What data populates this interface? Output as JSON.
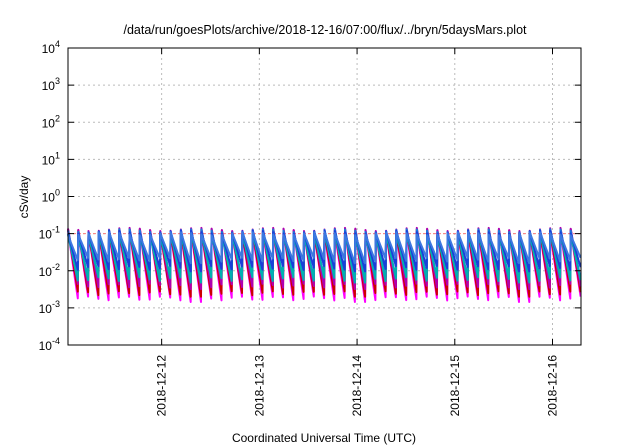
{
  "chart_data": {
    "type": "line",
    "title": "/data/run/goesPlots/archive/2018-12-16/07:00/flux/../bryn/5daysMars.plot",
    "xlabel": "Coordinated Universal Time (UTC)",
    "ylabel": "cSv/day",
    "yscale": "log",
    "ylim": [
      0.0001,
      10000
    ],
    "xlim": [
      "2018-12-11T01:00",
      "2018-12-16T07:00"
    ],
    "x_ticks": [
      "2018-12-12",
      "2018-12-13",
      "2018-12-14",
      "2018-12-15",
      "2018-12-16"
    ],
    "y_ticks": [
      {
        "base": "10",
        "exp": "-4"
      },
      {
        "base": "10",
        "exp": "-3"
      },
      {
        "base": "10",
        "exp": "-2"
      },
      {
        "base": "10",
        "exp": "-1"
      },
      {
        "base": "10",
        "exp": "0"
      },
      {
        "base": "10",
        "exp": "1"
      },
      {
        "base": "10",
        "exp": "2"
      },
      {
        "base": "10",
        "exp": "3"
      },
      {
        "base": "10",
        "exp": "4"
      }
    ],
    "grid": true,
    "threshold_line": 0.1,
    "sawtooth": {
      "teeth_count": 50,
      "peak_range": [
        0.1,
        0.13
      ],
      "min_range_lowest": [
        0.0015,
        0.005
      ],
      "gap_around": [
        "2018-12-12T06:00",
        "2018-12-13T22:00",
        "2018-12-15T14:00"
      ]
    },
    "series": [
      {
        "color": "#ff00ff",
        "peak": 0.11,
        "min": 0.0018
      },
      {
        "color": "#cc0000",
        "peak": 0.12,
        "min": 0.0025
      },
      {
        "color": "#b000b0",
        "peak": 0.13,
        "min": 0.004
      },
      {
        "color": "#1a7ad9",
        "peak": 0.12,
        "min": 0.007
      },
      {
        "color": "#00b0b0",
        "peak": 0.1,
        "min": 0.006
      },
      {
        "color": "#1a3fd9",
        "peak": 0.11,
        "min": 0.012
      },
      {
        "color": "#3c78e0",
        "peak": 0.1,
        "min": 0.02
      }
    ],
    "colors": {
      "grid": "#bbbbbb",
      "threshold": "#ff8080"
    }
  }
}
